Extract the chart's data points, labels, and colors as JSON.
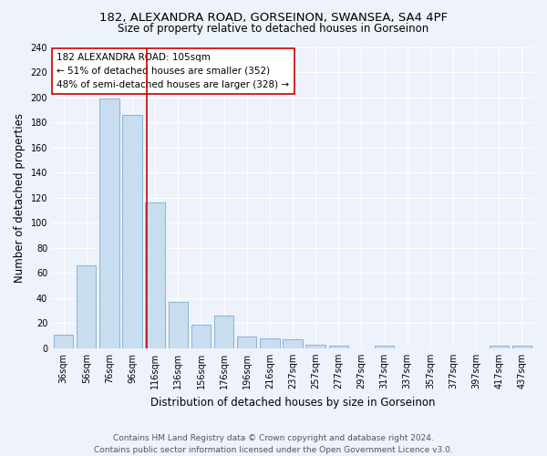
{
  "title": "182, ALEXANDRA ROAD, GORSEINON, SWANSEA, SA4 4PF",
  "subtitle": "Size of property relative to detached houses in Gorseinon",
  "xlabel": "Distribution of detached houses by size in Gorseinon",
  "ylabel": "Number of detached properties",
  "bar_labels": [
    "36sqm",
    "56sqm",
    "76sqm",
    "96sqm",
    "116sqm",
    "136sqm",
    "156sqm",
    "176sqm",
    "196sqm",
    "216sqm",
    "237sqm",
    "257sqm",
    "277sqm",
    "297sqm",
    "317sqm",
    "337sqm",
    "357sqm",
    "377sqm",
    "397sqm",
    "417sqm",
    "437sqm"
  ],
  "bar_values": [
    11,
    66,
    199,
    186,
    116,
    37,
    19,
    26,
    9,
    8,
    7,
    3,
    2,
    0,
    2,
    0,
    0,
    0,
    0,
    2,
    2
  ],
  "bar_color": "#c9ddf0",
  "bar_edgecolor": "#7aabcf",
  "vline_x": 3.65,
  "vline_color": "#cc0000",
  "annotation_text": "182 ALEXANDRA ROAD: 105sqm\n← 51% of detached houses are smaller (352)\n48% of semi-detached houses are larger (328) →",
  "annotation_box_color": "white",
  "annotation_box_edgecolor": "#cc0000",
  "ylim": [
    0,
    240
  ],
  "yticks": [
    0,
    20,
    40,
    60,
    80,
    100,
    120,
    140,
    160,
    180,
    200,
    220,
    240
  ],
  "footer_line1": "Contains HM Land Registry data © Crown copyright and database right 2024.",
  "footer_line2": "Contains public sector information licensed under the Open Government Licence v3.0.",
  "bg_color": "#eef2fa",
  "grid_color": "white",
  "title_fontsize": 9.5,
  "subtitle_fontsize": 8.5,
  "axis_label_fontsize": 8.5,
  "tick_fontsize": 7,
  "annotation_fontsize": 7.5,
  "footer_fontsize": 6.5
}
